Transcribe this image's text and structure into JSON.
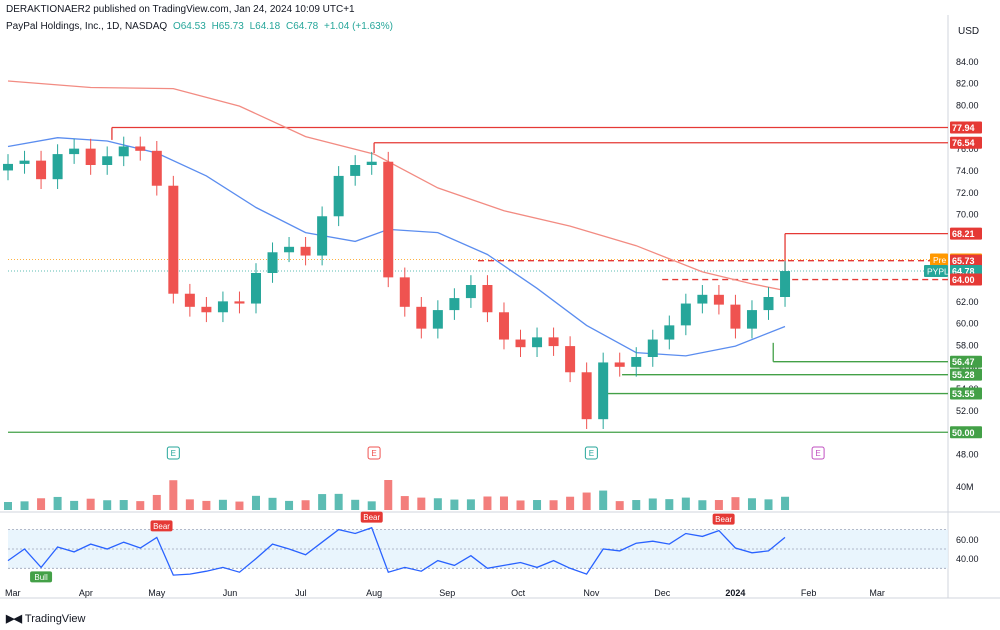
{
  "header": {
    "published": "DERAKTIONAER2 published on TradingView.com, Jan 24, 2024 10:09 UTC+1",
    "symbol": "PayPal Holdings, Inc., 1D, NASDAQ",
    "ohlc": {
      "o": "O64.53",
      "h": "H65.73",
      "l": "L64.18",
      "c": "C64.78",
      "chg": "+1.04 (+1.63%)"
    },
    "currency": "USD"
  },
  "footer": {
    "brand": "TradingView"
  },
  "colors": {
    "up": "#26a69a",
    "down": "#ef5350",
    "ma_red": "#f28b82",
    "ma_blue": "#5b8def",
    "resistance": "#e53935",
    "support": "#43a047",
    "rsi": "#2962ff"
  },
  "chart_data": {
    "type": "candlestick",
    "price_axis": {
      "ticks": [
        "84.00",
        "82.00",
        "80.00",
        "78.00",
        "76.00",
        "74.00",
        "72.00",
        "70.00",
        "68.00",
        "66.00",
        "64.00",
        "62.00",
        "60.00",
        "58.00",
        "56.00",
        "54.00",
        "52.00",
        "50.00",
        "48.00"
      ],
      "range": [
        47,
        85.5
      ]
    },
    "time_axis": {
      "labels": [
        "Mar",
        "Apr",
        "May",
        "Jun",
        "Jul",
        "Aug",
        "Sep",
        "Oct",
        "Nov",
        "Dec",
        "2024",
        "Feb",
        "Mar"
      ],
      "start": "2023-02-27",
      "end": "2024-03-31"
    },
    "price_tags": [
      {
        "label": "77.94",
        "value": 77.94,
        "kind": "resistance"
      },
      {
        "label": "76.54",
        "value": 76.54,
        "kind": "resistance"
      },
      {
        "label": "68.21",
        "value": 68.21,
        "kind": "resistance"
      },
      {
        "label": "Pre",
        "value": 65.84,
        "text": "65.84",
        "kind": "pre"
      },
      {
        "label": "65.73",
        "value": 65.73,
        "kind": "resistance"
      },
      {
        "label": "PYPL",
        "value": 64.78,
        "text": "64.78",
        "kind": "last"
      },
      {
        "label": "64.00",
        "value": 64.0,
        "kind": "resistance"
      },
      {
        "label": "56.47",
        "value": 56.47,
        "kind": "support"
      },
      {
        "label": "55.28",
        "value": 55.28,
        "kind": "support"
      },
      {
        "label": "54.00",
        "value": 54.0,
        "kind": "tick"
      },
      {
        "label": "53.55",
        "value": 53.55,
        "kind": "support"
      },
      {
        "label": "50.00",
        "value": 50.0,
        "kind": "support"
      }
    ],
    "levels": [
      {
        "value": 77.94,
        "from": "2023-04-12",
        "kind": "resistance",
        "style": "solid"
      },
      {
        "value": 76.54,
        "from": "2023-08-01",
        "kind": "resistance",
        "style": "solid"
      },
      {
        "value": 68.21,
        "from": "2024-01-22",
        "kind": "resistance",
        "style": "solid"
      },
      {
        "value": 65.73,
        "from": "2023-09-14",
        "kind": "resistance",
        "style": "dashed"
      },
      {
        "value": 64.0,
        "from": "2023-12-01",
        "kind": "resistance",
        "style": "dashed"
      },
      {
        "value": 56.47,
        "from": "2024-01-17",
        "kind": "support",
        "style": "solid"
      },
      {
        "value": 55.28,
        "from": "2023-11-14",
        "kind": "support",
        "style": "solid"
      },
      {
        "value": 53.55,
        "from": "2023-11-07",
        "kind": "support",
        "style": "solid"
      },
      {
        "value": 50.0,
        "from": "2023-02-27",
        "kind": "support",
        "style": "solid"
      }
    ],
    "closes": [
      {
        "d": "2023-02-27",
        "c": 74.6
      },
      {
        "d": "2023-03-06",
        "c": 74.9
      },
      {
        "d": "2023-03-13",
        "c": 73.2
      },
      {
        "d": "2023-03-20",
        "c": 75.5
      },
      {
        "d": "2023-03-27",
        "c": 76.0
      },
      {
        "d": "2023-04-03",
        "c": 74.5
      },
      {
        "d": "2023-04-10",
        "c": 75.3
      },
      {
        "d": "2023-04-17",
        "c": 76.2
      },
      {
        "d": "2023-04-24",
        "c": 75.8
      },
      {
        "d": "2023-05-01",
        "c": 72.6
      },
      {
        "d": "2023-05-08",
        "c": 62.7
      },
      {
        "d": "2023-05-15",
        "c": 61.5
      },
      {
        "d": "2023-05-22",
        "c": 61.0
      },
      {
        "d": "2023-05-29",
        "c": 62.0
      },
      {
        "d": "2023-06-05",
        "c": 61.8
      },
      {
        "d": "2023-06-12",
        "c": 64.6
      },
      {
        "d": "2023-06-19",
        "c": 66.5
      },
      {
        "d": "2023-06-26",
        "c": 67.0
      },
      {
        "d": "2023-07-03",
        "c": 66.2
      },
      {
        "d": "2023-07-10",
        "c": 69.8
      },
      {
        "d": "2023-07-17",
        "c": 73.5
      },
      {
        "d": "2023-07-24",
        "c": 74.5
      },
      {
        "d": "2023-07-31",
        "c": 74.8
      },
      {
        "d": "2023-08-07",
        "c": 64.2
      },
      {
        "d": "2023-08-14",
        "c": 61.5
      },
      {
        "d": "2023-08-21",
        "c": 59.5
      },
      {
        "d": "2023-08-28",
        "c": 61.2
      },
      {
        "d": "2023-09-04",
        "c": 62.3
      },
      {
        "d": "2023-09-11",
        "c": 63.5
      },
      {
        "d": "2023-09-18",
        "c": 61.0
      },
      {
        "d": "2023-09-25",
        "c": 58.5
      },
      {
        "d": "2023-10-02",
        "c": 57.8
      },
      {
        "d": "2023-10-09",
        "c": 58.7
      },
      {
        "d": "2023-10-16",
        "c": 57.9
      },
      {
        "d": "2023-10-23",
        "c": 55.5
      },
      {
        "d": "2023-10-30",
        "c": 51.2
      },
      {
        "d": "2023-11-06",
        "c": 56.4
      },
      {
        "d": "2023-11-13",
        "c": 56.0
      },
      {
        "d": "2023-11-20",
        "c": 56.9
      },
      {
        "d": "2023-11-27",
        "c": 58.5
      },
      {
        "d": "2023-12-04",
        "c": 59.8
      },
      {
        "d": "2023-12-11",
        "c": 61.8
      },
      {
        "d": "2023-12-18",
        "c": 62.6
      },
      {
        "d": "2023-12-25",
        "c": 61.7
      },
      {
        "d": "2024-01-01",
        "c": 59.5
      },
      {
        "d": "2024-01-08",
        "c": 61.2
      },
      {
        "d": "2024-01-15",
        "c": 62.4
      },
      {
        "d": "2024-01-22",
        "c": 64.78
      }
    ],
    "ma_blue": [
      {
        "d": "2023-02-27",
        "v": 76.2
      },
      {
        "d": "2023-03-20",
        "v": 77.0
      },
      {
        "d": "2023-04-10",
        "v": 76.7
      },
      {
        "d": "2023-05-01",
        "v": 75.6
      },
      {
        "d": "2023-05-22",
        "v": 73.5
      },
      {
        "d": "2023-06-12",
        "v": 70.6
      },
      {
        "d": "2023-07-03",
        "v": 68.3
      },
      {
        "d": "2023-07-24",
        "v": 67.5
      },
      {
        "d": "2023-08-07",
        "v": 68.6
      },
      {
        "d": "2023-08-28",
        "v": 68.3
      },
      {
        "d": "2023-09-18",
        "v": 66.3
      },
      {
        "d": "2023-10-09",
        "v": 63.2
      },
      {
        "d": "2023-10-30",
        "v": 59.8
      },
      {
        "d": "2023-11-20",
        "v": 57.3
      },
      {
        "d": "2023-12-11",
        "v": 57.0
      },
      {
        "d": "2024-01-01",
        "v": 57.9
      },
      {
        "d": "2024-01-22",
        "v": 59.7
      }
    ],
    "ma_red": [
      {
        "d": "2023-02-27",
        "v": 82.2
      },
      {
        "d": "2023-04-03",
        "v": 81.6
      },
      {
        "d": "2023-05-08",
        "v": 81.5
      },
      {
        "d": "2023-06-05",
        "v": 79.9
      },
      {
        "d": "2023-07-03",
        "v": 77.1
      },
      {
        "d": "2023-08-01",
        "v": 75.5
      },
      {
        "d": "2023-08-28",
        "v": 72.4
      },
      {
        "d": "2023-09-25",
        "v": 70.3
      },
      {
        "d": "2023-10-23",
        "v": 68.9
      },
      {
        "d": "2023-11-20",
        "v": 67.1
      },
      {
        "d": "2023-12-18",
        "v": 64.7
      },
      {
        "d": "2024-01-08",
        "v": 63.6
      },
      {
        "d": "2024-01-22",
        "v": 63.0
      }
    ],
    "events": [
      {
        "d": "2023-05-08",
        "label": "E",
        "kind": "up"
      },
      {
        "d": "2023-08-01",
        "label": "E",
        "kind": "down"
      },
      {
        "d": "2023-11-01",
        "label": "E",
        "kind": "up"
      },
      {
        "d": "2024-02-05",
        "label": "E",
        "kind": "future"
      }
    ],
    "volume": {
      "label": "40M"
    },
    "rsi": {
      "ticks": [
        "60.00",
        "40.00"
      ],
      "range": [
        20,
        82
      ],
      "bands": [
        70,
        30
      ],
      "markers": [
        {
          "d": "2023-03-13",
          "label": "Bull",
          "kind": "bull",
          "v": 31
        },
        {
          "d": "2023-05-03",
          "label": "Bear",
          "kind": "bear",
          "v": 63
        },
        {
          "d": "2023-07-31",
          "label": "Bear",
          "kind": "bear",
          "v": 72
        },
        {
          "d": "2023-12-27",
          "label": "Bear",
          "kind": "bear",
          "v": 70
        }
      ],
      "values": [
        {
          "d": "2023-02-27",
          "v": 38
        },
        {
          "d": "2023-03-06",
          "v": 50
        },
        {
          "d": "2023-03-13",
          "v": 31
        },
        {
          "d": "2023-03-20",
          "v": 52
        },
        {
          "d": "2023-03-27",
          "v": 47
        },
        {
          "d": "2023-04-03",
          "v": 55
        },
        {
          "d": "2023-04-10",
          "v": 50
        },
        {
          "d": "2023-04-17",
          "v": 57
        },
        {
          "d": "2023-04-24",
          "v": 51
        },
        {
          "d": "2023-05-01",
          "v": 62
        },
        {
          "d": "2023-05-08",
          "v": 23
        },
        {
          "d": "2023-05-15",
          "v": 24
        },
        {
          "d": "2023-05-22",
          "v": 27
        },
        {
          "d": "2023-05-29",
          "v": 31
        },
        {
          "d": "2023-06-05",
          "v": 26
        },
        {
          "d": "2023-06-12",
          "v": 40
        },
        {
          "d": "2023-06-19",
          "v": 55
        },
        {
          "d": "2023-06-26",
          "v": 50
        },
        {
          "d": "2023-07-03",
          "v": 44
        },
        {
          "d": "2023-07-10",
          "v": 57
        },
        {
          "d": "2023-07-17",
          "v": 70
        },
        {
          "d": "2023-07-24",
          "v": 66
        },
        {
          "d": "2023-07-31",
          "v": 72
        },
        {
          "d": "2023-08-07",
          "v": 26
        },
        {
          "d": "2023-08-14",
          "v": 31
        },
        {
          "d": "2023-08-21",
          "v": 27
        },
        {
          "d": "2023-08-28",
          "v": 38
        },
        {
          "d": "2023-09-04",
          "v": 33
        },
        {
          "d": "2023-09-11",
          "v": 43
        },
        {
          "d": "2023-09-18",
          "v": 30
        },
        {
          "d": "2023-09-25",
          "v": 33
        },
        {
          "d": "2023-10-02",
          "v": 36
        },
        {
          "d": "2023-10-09",
          "v": 31
        },
        {
          "d": "2023-10-16",
          "v": 38
        },
        {
          "d": "2023-10-23",
          "v": 30
        },
        {
          "d": "2023-10-30",
          "v": 24
        },
        {
          "d": "2023-11-06",
          "v": 50
        },
        {
          "d": "2023-11-13",
          "v": 48
        },
        {
          "d": "2023-11-20",
          "v": 56
        },
        {
          "d": "2023-11-27",
          "v": 58
        },
        {
          "d": "2023-12-04",
          "v": 55
        },
        {
          "d": "2023-12-11",
          "v": 66
        },
        {
          "d": "2023-12-18",
          "v": 63
        },
        {
          "d": "2023-12-25",
          "v": 69
        },
        {
          "d": "2024-01-01",
          "v": 51
        },
        {
          "d": "2024-01-08",
          "v": 46
        },
        {
          "d": "2024-01-15",
          "v": 48
        },
        {
          "d": "2024-01-22",
          "v": 62
        }
      ]
    }
  }
}
